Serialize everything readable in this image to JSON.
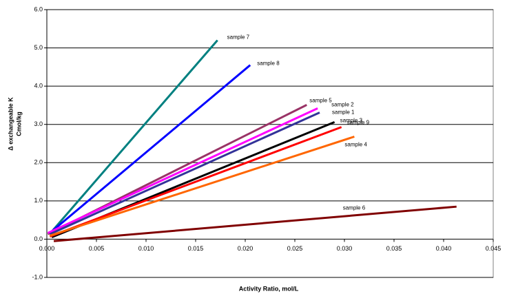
{
  "chart_data": {
    "type": "line",
    "xlabel": "Activity Ratio, mol/L",
    "ylabel": [
      "Δ exchangeable K",
      "Cmol/kg"
    ],
    "xlim": [
      0,
      0.045
    ],
    "ylim": [
      -1,
      6
    ],
    "xticks": [
      {
        "value": 0,
        "label": "0.000"
      },
      {
        "value": 0.005,
        "label": "0.005"
      },
      {
        "value": 0.01,
        "label": "0.010"
      },
      {
        "value": 0.015,
        "label": "0.015"
      },
      {
        "value": 0.02,
        "label": "0.020"
      },
      {
        "value": 0.025,
        "label": "0.025"
      },
      {
        "value": 0.03,
        "label": "0.030"
      },
      {
        "value": 0.035,
        "label": "0.035"
      },
      {
        "value": 0.04,
        "label": "0.040"
      },
      {
        "value": 0.045,
        "label": "0.045"
      }
    ],
    "yticks": [
      {
        "value": -1,
        "label": "-1.0"
      },
      {
        "value": 0,
        "label": "0.0"
      },
      {
        "value": 1,
        "label": "1.0"
      },
      {
        "value": 2,
        "label": "2.0"
      },
      {
        "value": 3,
        "label": "3.0"
      },
      {
        "value": 4,
        "label": "4.0"
      },
      {
        "value": 5,
        "label": "5.0"
      },
      {
        "value": 6,
        "label": "6.0"
      }
    ],
    "grid": true,
    "series": [
      {
        "name": "sample 7",
        "color": "#008080",
        "x": [
          0.0003,
          0.0172
        ],
        "values": [
          0.14,
          5.2
        ]
      },
      {
        "name": "sample 8",
        "color": "#0000ff",
        "x": [
          0.0003,
          0.0205
        ],
        "values": [
          0.16,
          4.55
        ]
      },
      {
        "name": "sample 5",
        "color": "#993366",
        "x": [
          0.0001,
          0.0262
        ],
        "values": [
          0.13,
          3.51
        ]
      },
      {
        "name": "sample 2",
        "color": "#ff00ff",
        "x": [
          0.0001,
          0.0273
        ],
        "values": [
          0.16,
          3.42
        ]
      },
      {
        "name": "sample 1",
        "color": "#333399",
        "x": [
          0.0003,
          0.0275
        ],
        "values": [
          0.13,
          3.31
        ]
      },
      {
        "name": "sample 3",
        "color": "#000000",
        "x": [
          0.0005,
          0.029
        ],
        "values": [
          0.05,
          3.06
        ]
      },
      {
        "name": "sample 9",
        "color": "#ff0000",
        "x": [
          0.0003,
          0.0297
        ],
        "values": [
          0.07,
          2.93
        ]
      },
      {
        "name": "sample 4",
        "color": "#ff6600",
        "x": [
          0.0003,
          0.031
        ],
        "values": [
          0.09,
          2.68
        ]
      },
      {
        "name": "sample 6",
        "color": "#800000",
        "x": [
          0.0007,
          0.0413
        ],
        "values": [
          -0.05,
          0.85
        ]
      }
    ]
  }
}
